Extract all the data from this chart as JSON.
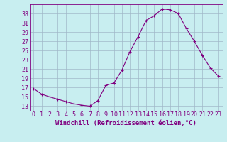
{
  "x": [
    0,
    1,
    2,
    3,
    4,
    5,
    6,
    7,
    8,
    9,
    10,
    11,
    12,
    13,
    14,
    15,
    16,
    17,
    18,
    19,
    20,
    21,
    22,
    23
  ],
  "y": [
    16.8,
    15.6,
    15.0,
    14.5,
    14.0,
    13.5,
    13.2,
    13.0,
    14.2,
    17.5,
    18.0,
    20.8,
    24.8,
    28.0,
    31.5,
    32.5,
    34.0,
    33.8,
    33.0,
    29.8,
    27.0,
    24.0,
    21.2,
    19.5
  ],
  "line_color": "#800080",
  "marker_color": "#800080",
  "bg_color": "#c8eef0",
  "grid_color": "#a0b8c8",
  "axis_color": "#800080",
  "xlabel": "Windchill (Refroidissement éolien,°C)",
  "yticks": [
    13,
    15,
    17,
    19,
    21,
    23,
    25,
    27,
    29,
    31,
    33
  ],
  "xticks": [
    0,
    1,
    2,
    3,
    4,
    5,
    6,
    7,
    8,
    9,
    10,
    11,
    12,
    13,
    14,
    15,
    16,
    17,
    18,
    19,
    20,
    21,
    22,
    23
  ],
  "ylim": [
    12.0,
    35.0
  ],
  "xlim": [
    -0.5,
    23.5
  ],
  "label_fontsize": 6.5,
  "tick_fontsize": 6.0
}
